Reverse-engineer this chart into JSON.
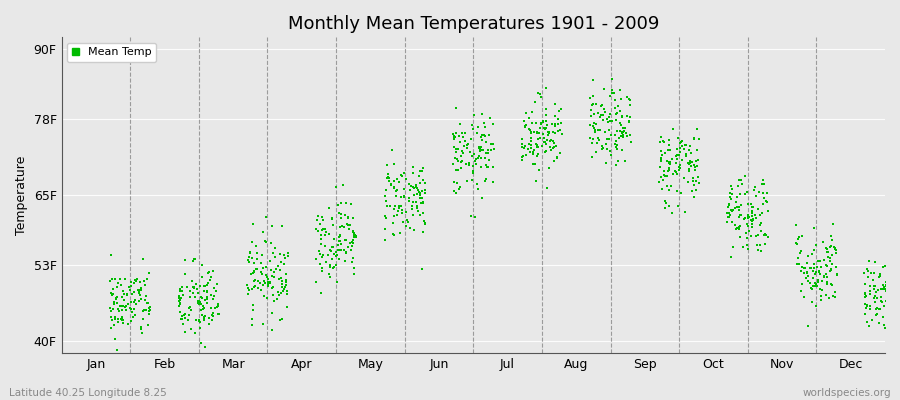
{
  "title": "Monthly Mean Temperatures 1901 - 2009",
  "ylabel": "Temperature",
  "subtitle_left": "Latitude 40.25 Longitude 8.25",
  "subtitle_right": "worldspecies.org",
  "dot_color": "#00bb00",
  "dot_size": 3,
  "background_color": "#e8e8e8",
  "plot_bg_color": "#e8e8e8",
  "yticks": [
    40,
    53,
    65,
    78,
    90
  ],
  "ylabels": [
    "40F",
    "53F",
    "65F",
    "78F",
    "90F"
  ],
  "ylim": [
    38,
    92
  ],
  "months": [
    "Jan",
    "Feb",
    "Mar",
    "Apr",
    "May",
    "Jun",
    "Jul",
    "Aug",
    "Sep",
    "Oct",
    "Nov",
    "Dec"
  ],
  "month_means_F": [
    46.5,
    46.5,
    51.5,
    57.5,
    64.5,
    71.5,
    75.5,
    76.5,
    70.0,
    62.0,
    52.5,
    47.5
  ],
  "month_stds_F": [
    3.0,
    3.5,
    3.5,
    3.5,
    3.5,
    3.5,
    3.2,
    3.2,
    3.5,
    3.5,
    3.5,
    3.0
  ],
  "n_years": 109,
  "seed": 42,
  "figsize": [
    9.0,
    4.0
  ],
  "dpi": 100
}
